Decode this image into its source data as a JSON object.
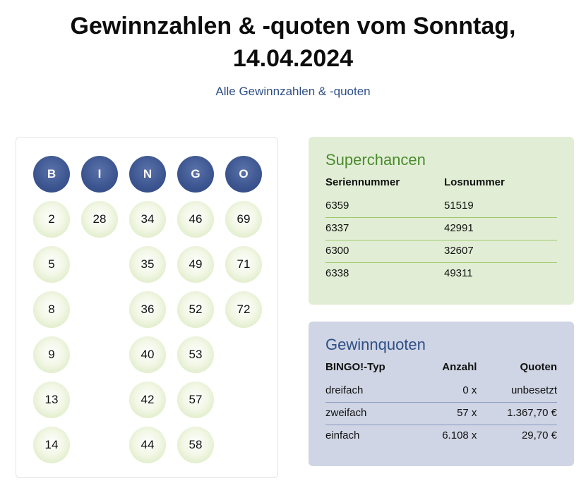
{
  "header": {
    "title_line1": "Gewinnzahlen & -quoten vom Sonntag,",
    "title_line2": "14.04.2024",
    "link": "Alle Gewinnzahlen & -quoten"
  },
  "bingo": {
    "columns": [
      {
        "letter": "B",
        "numbers": [
          "2",
          "5",
          "8",
          "9",
          "13",
          "14"
        ]
      },
      {
        "letter": "I",
        "numbers": [
          "28"
        ]
      },
      {
        "letter": "N",
        "numbers": [
          "34",
          "35",
          "36",
          "40",
          "42",
          "44"
        ]
      },
      {
        "letter": "G",
        "numbers": [
          "46",
          "49",
          "52",
          "53",
          "57",
          "58"
        ]
      },
      {
        "letter": "O",
        "numbers": [
          "69",
          "71",
          "72"
        ]
      }
    ]
  },
  "superchancen": {
    "title": "Superchancen",
    "headers": [
      "Seriennummer",
      "Losnummer"
    ],
    "rows": [
      [
        "6359",
        "51519"
      ],
      [
        "6337",
        "42991"
      ],
      [
        "6300",
        "32607"
      ],
      [
        "6338",
        "49311"
      ]
    ]
  },
  "gewinnquoten": {
    "title": "Gewinnquoten",
    "header_type_a": "BINGO",
    "header_type_b": "!-Typ",
    "header_count": "Anzahl",
    "header_quota": "Quoten",
    "rows": [
      [
        "dreifach",
        "0 x",
        "unbesetzt"
      ],
      [
        "zweifach",
        "57 x",
        "1.367,70 €"
      ],
      [
        "einfach",
        "6.108 x",
        "29,70 €"
      ]
    ]
  },
  "colors": {
    "accent_blue": "#2f4f86",
    "accent_green": "#4c8a2e",
    "panel_green": "#e1eed5",
    "panel_blue": "#cfd5e4"
  }
}
